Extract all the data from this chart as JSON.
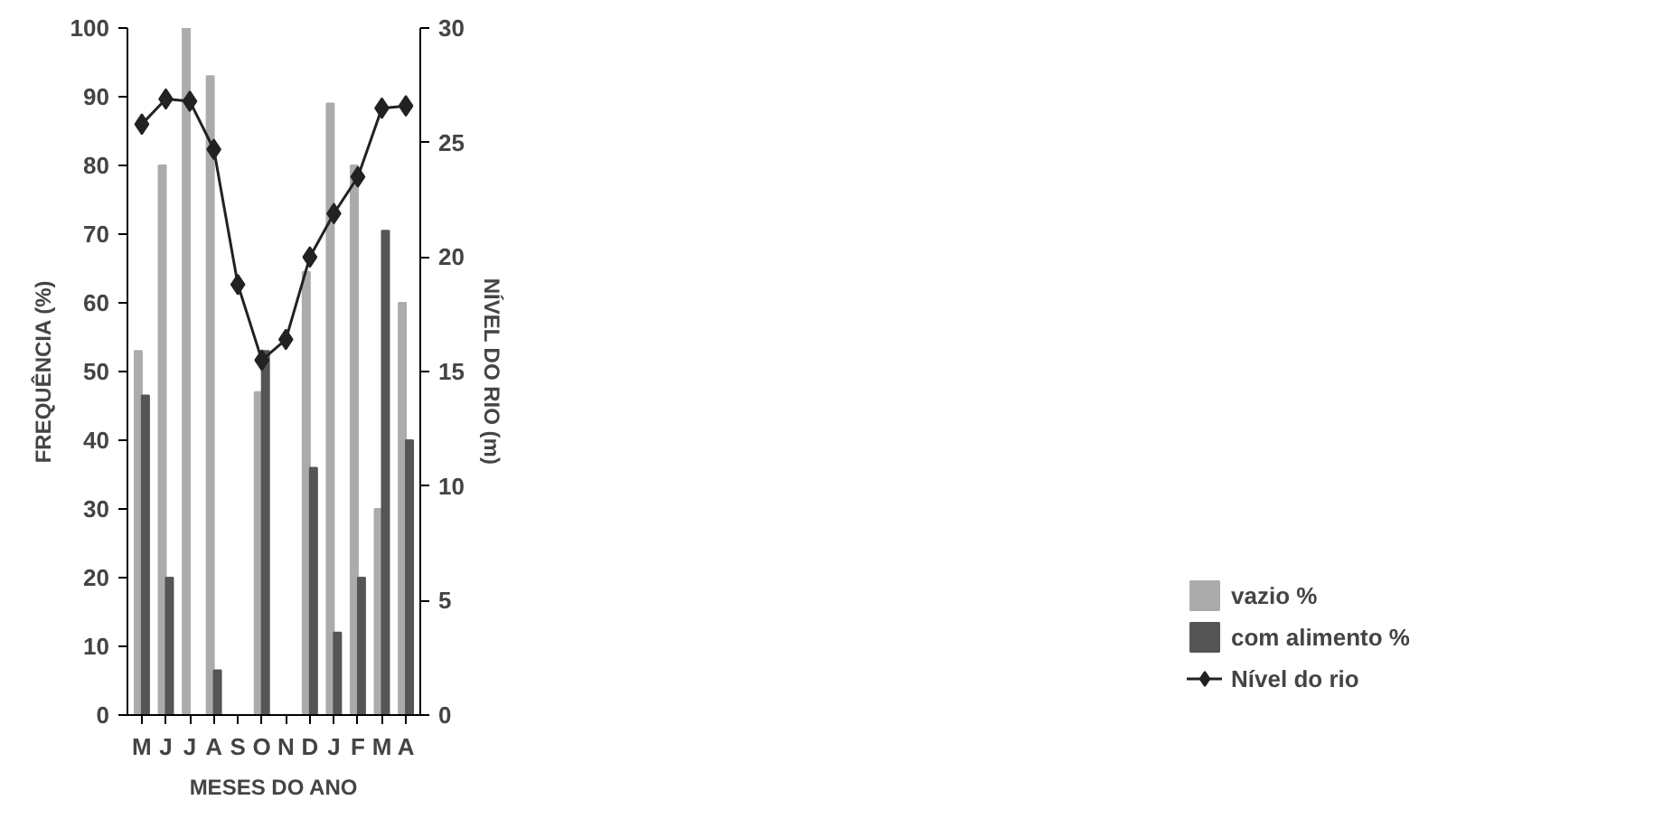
{
  "chart_data": {
    "type": "bar",
    "xlabel": "MESES DO ANO",
    "ylabel": "FREQUÊNCIA (%)",
    "y2label": "NÍVEL DO RIO (m)",
    "categories": [
      "M",
      "J",
      "J",
      "A",
      "S",
      "O",
      "N",
      "D",
      "J",
      "F",
      "M",
      "A"
    ],
    "ylim": [
      0,
      100
    ],
    "yticks": [
      0,
      10,
      20,
      30,
      40,
      50,
      60,
      70,
      80,
      90,
      100
    ],
    "y2lim": [
      0,
      30
    ],
    "y2ticks": [
      0,
      5,
      10,
      15,
      20,
      25,
      30
    ],
    "grid": false,
    "legend": "bottom right",
    "series": [
      {
        "name": "vazio %",
        "color": "#ababab",
        "values": [
          53,
          80,
          100,
          93,
          null,
          47,
          null,
          64.5,
          89,
          80,
          30,
          60
        ]
      },
      {
        "name": "com alimento %",
        "color": "#555555",
        "values": [
          46.5,
          20,
          null,
          6.5,
          null,
          53,
          null,
          36,
          12,
          20,
          70.5,
          40
        ]
      },
      {
        "name": "Nível do rio",
        "type": "line",
        "axis": "y2",
        "color": "#222222",
        "marker": "diamond",
        "line_style": "solid",
        "values": [
          25.8,
          26.9,
          26.8,
          24.7,
          18.8,
          15.5,
          16.4,
          20.0,
          21.9,
          23.5,
          26.5,
          26.6
        ]
      }
    ]
  }
}
